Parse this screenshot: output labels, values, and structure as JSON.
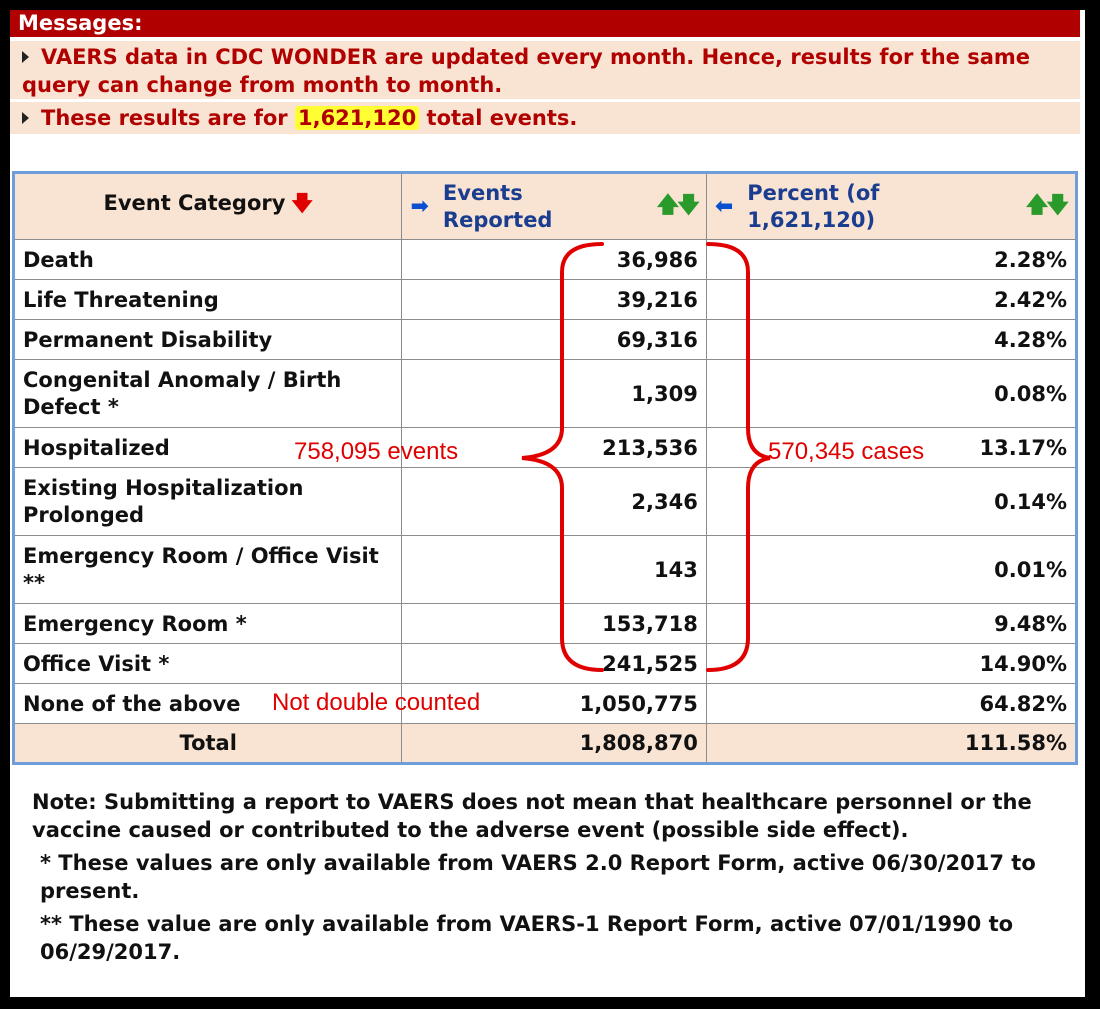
{
  "messages": {
    "header": "Messages:",
    "line1": "VAERS data in CDC WONDER are updated every month. Hence, results for the same query can change from month to month.",
    "line2_prefix": "These results are for",
    "line2_value": "1,621,120",
    "line2_suffix": "total events."
  },
  "table": {
    "headers": {
      "category": "Event Category",
      "events": "Events Reported",
      "percent": "Percent (of 1,621,120)"
    },
    "rows": [
      {
        "category": "Death",
        "events": "36,986",
        "percent": "2.28%"
      },
      {
        "category": "Life Threatening",
        "events": "39,216",
        "percent": "2.42%"
      },
      {
        "category": "Permanent Disability",
        "events": "69,316",
        "percent": "4.28%"
      },
      {
        "category": "Congenital Anomaly / Birth Defect *",
        "events": "1,309",
        "percent": "0.08%"
      },
      {
        "category": "Hospitalized",
        "events": "213,536",
        "percent": "13.17%"
      },
      {
        "category": "Existing Hospitalization Prolonged",
        "events": "2,346",
        "percent": "0.14%"
      },
      {
        "category": "Emergency Room / Office Visit **",
        "events": "143",
        "percent": "0.01%"
      },
      {
        "category": "Emergency Room *",
        "events": "153,718",
        "percent": "9.48%"
      },
      {
        "category": "Office Visit *",
        "events": "241,525",
        "percent": "14.90%"
      },
      {
        "category": "None of the above",
        "events": "1,050,775",
        "percent": "64.82%"
      }
    ],
    "total": {
      "label": "Total",
      "events": "1,808,870",
      "percent": "111.58%"
    }
  },
  "annotations": {
    "events": "758,095 events",
    "cases": "570,345 cases",
    "not_double": "Not double counted",
    "color": "#e00000"
  },
  "notes": {
    "note": "Note: Submitting a report to VAERS does not mean that healthcare personnel or the vaccine caused or contributed to the adverse event (possible side effect).",
    "footnote1": "* These values are only available from VAERS 2.0 Report Form, active 06/30/2017 to present.",
    "footnote2": "** These value are only available from VAERS-1 Report Form, active 07/01/1990 to 06/29/2017."
  }
}
